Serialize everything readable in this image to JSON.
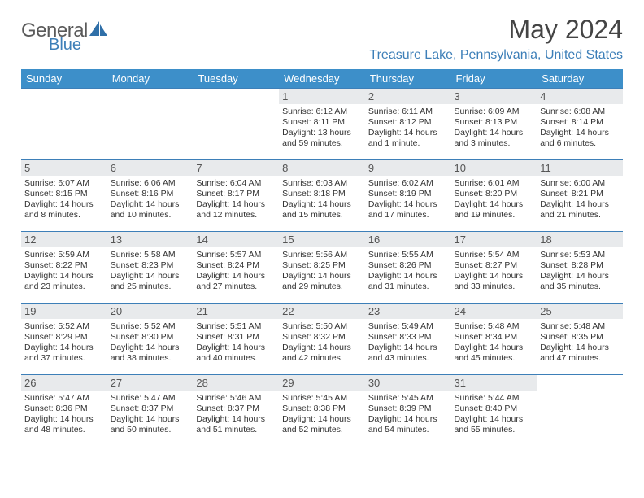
{
  "brand": {
    "part1": "General",
    "part2": "Blue"
  },
  "title": "May 2024",
  "location": "Treasure Lake, Pennsylvania, United States",
  "colors": {
    "header_bg": "#3d8fc9",
    "header_text": "#ffffff",
    "accent": "#3d7fb8",
    "daynum_bg": "#e8eaec",
    "body_text": "#333333",
    "background": "#ffffff"
  },
  "day_headers": [
    "Sunday",
    "Monday",
    "Tuesday",
    "Wednesday",
    "Thursday",
    "Friday",
    "Saturday"
  ],
  "weeks": [
    [
      null,
      null,
      null,
      {
        "n": "1",
        "sunrise": "6:12 AM",
        "sunset": "8:11 PM",
        "daylight": "13 hours and 59 minutes."
      },
      {
        "n": "2",
        "sunrise": "6:11 AM",
        "sunset": "8:12 PM",
        "daylight": "14 hours and 1 minute."
      },
      {
        "n": "3",
        "sunrise": "6:09 AM",
        "sunset": "8:13 PM",
        "daylight": "14 hours and 3 minutes."
      },
      {
        "n": "4",
        "sunrise": "6:08 AM",
        "sunset": "8:14 PM",
        "daylight": "14 hours and 6 minutes."
      }
    ],
    [
      {
        "n": "5",
        "sunrise": "6:07 AM",
        "sunset": "8:15 PM",
        "daylight": "14 hours and 8 minutes."
      },
      {
        "n": "6",
        "sunrise": "6:06 AM",
        "sunset": "8:16 PM",
        "daylight": "14 hours and 10 minutes."
      },
      {
        "n": "7",
        "sunrise": "6:04 AM",
        "sunset": "8:17 PM",
        "daylight": "14 hours and 12 minutes."
      },
      {
        "n": "8",
        "sunrise": "6:03 AM",
        "sunset": "8:18 PM",
        "daylight": "14 hours and 15 minutes."
      },
      {
        "n": "9",
        "sunrise": "6:02 AM",
        "sunset": "8:19 PM",
        "daylight": "14 hours and 17 minutes."
      },
      {
        "n": "10",
        "sunrise": "6:01 AM",
        "sunset": "8:20 PM",
        "daylight": "14 hours and 19 minutes."
      },
      {
        "n": "11",
        "sunrise": "6:00 AM",
        "sunset": "8:21 PM",
        "daylight": "14 hours and 21 minutes."
      }
    ],
    [
      {
        "n": "12",
        "sunrise": "5:59 AM",
        "sunset": "8:22 PM",
        "daylight": "14 hours and 23 minutes."
      },
      {
        "n": "13",
        "sunrise": "5:58 AM",
        "sunset": "8:23 PM",
        "daylight": "14 hours and 25 minutes."
      },
      {
        "n": "14",
        "sunrise": "5:57 AM",
        "sunset": "8:24 PM",
        "daylight": "14 hours and 27 minutes."
      },
      {
        "n": "15",
        "sunrise": "5:56 AM",
        "sunset": "8:25 PM",
        "daylight": "14 hours and 29 minutes."
      },
      {
        "n": "16",
        "sunrise": "5:55 AM",
        "sunset": "8:26 PM",
        "daylight": "14 hours and 31 minutes."
      },
      {
        "n": "17",
        "sunrise": "5:54 AM",
        "sunset": "8:27 PM",
        "daylight": "14 hours and 33 minutes."
      },
      {
        "n": "18",
        "sunrise": "5:53 AM",
        "sunset": "8:28 PM",
        "daylight": "14 hours and 35 minutes."
      }
    ],
    [
      {
        "n": "19",
        "sunrise": "5:52 AM",
        "sunset": "8:29 PM",
        "daylight": "14 hours and 37 minutes."
      },
      {
        "n": "20",
        "sunrise": "5:52 AM",
        "sunset": "8:30 PM",
        "daylight": "14 hours and 38 minutes."
      },
      {
        "n": "21",
        "sunrise": "5:51 AM",
        "sunset": "8:31 PM",
        "daylight": "14 hours and 40 minutes."
      },
      {
        "n": "22",
        "sunrise": "5:50 AM",
        "sunset": "8:32 PM",
        "daylight": "14 hours and 42 minutes."
      },
      {
        "n": "23",
        "sunrise": "5:49 AM",
        "sunset": "8:33 PM",
        "daylight": "14 hours and 43 minutes."
      },
      {
        "n": "24",
        "sunrise": "5:48 AM",
        "sunset": "8:34 PM",
        "daylight": "14 hours and 45 minutes."
      },
      {
        "n": "25",
        "sunrise": "5:48 AM",
        "sunset": "8:35 PM",
        "daylight": "14 hours and 47 minutes."
      }
    ],
    [
      {
        "n": "26",
        "sunrise": "5:47 AM",
        "sunset": "8:36 PM",
        "daylight": "14 hours and 48 minutes."
      },
      {
        "n": "27",
        "sunrise": "5:47 AM",
        "sunset": "8:37 PM",
        "daylight": "14 hours and 50 minutes."
      },
      {
        "n": "28",
        "sunrise": "5:46 AM",
        "sunset": "8:37 PM",
        "daylight": "14 hours and 51 minutes."
      },
      {
        "n": "29",
        "sunrise": "5:45 AM",
        "sunset": "8:38 PM",
        "daylight": "14 hours and 52 minutes."
      },
      {
        "n": "30",
        "sunrise": "5:45 AM",
        "sunset": "8:39 PM",
        "daylight": "14 hours and 54 minutes."
      },
      {
        "n": "31",
        "sunrise": "5:44 AM",
        "sunset": "8:40 PM",
        "daylight": "14 hours and 55 minutes."
      },
      null
    ]
  ],
  "labels": {
    "sunrise": "Sunrise:",
    "sunset": "Sunset:",
    "daylight": "Daylight:"
  }
}
